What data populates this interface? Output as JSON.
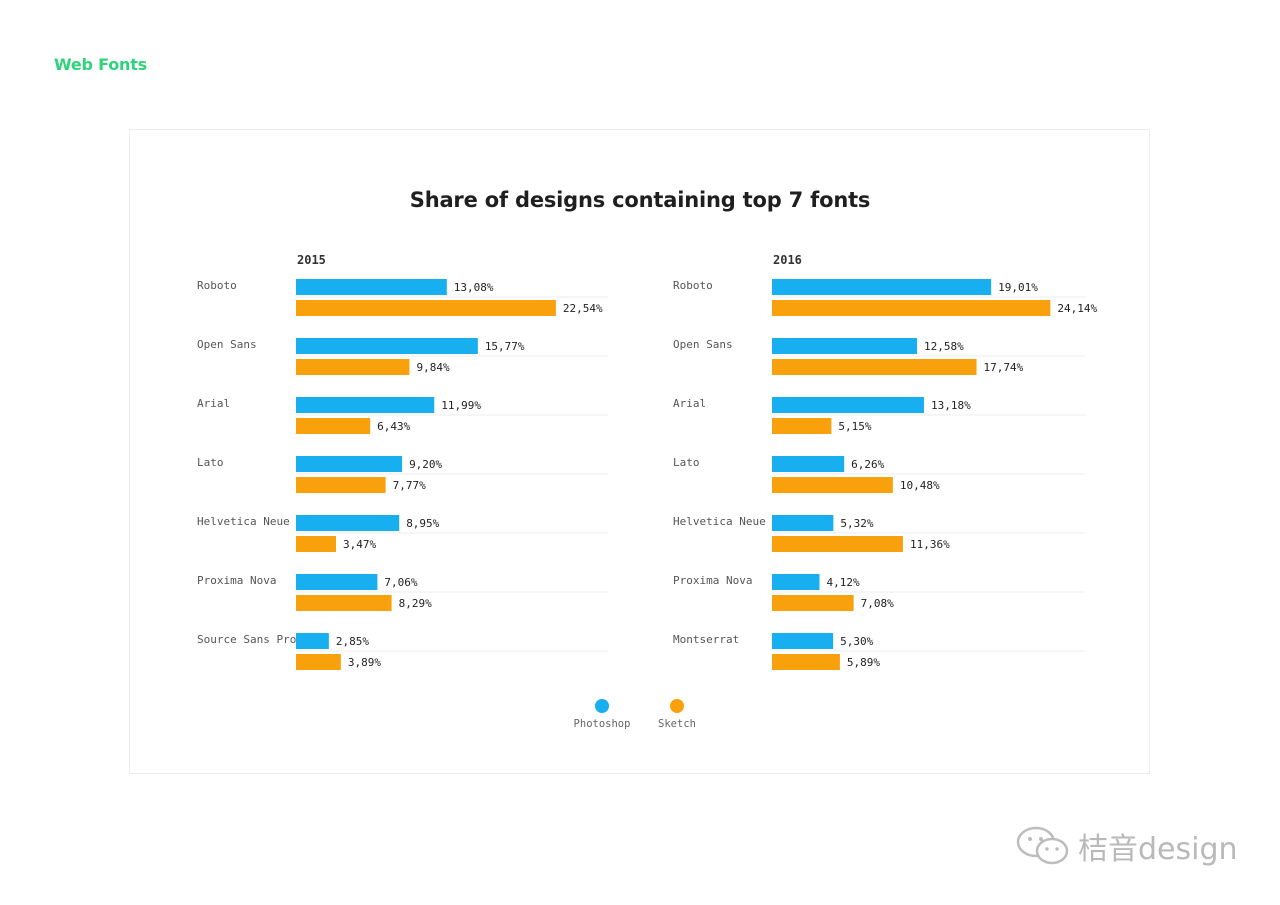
{
  "page": {
    "heading": "Web Fonts",
    "watermark": "桔音design"
  },
  "colors": {
    "photoshop": "#18aff0",
    "sketch": "#f8a10c",
    "heading": "#2ed47a",
    "grid": "#eeeeee"
  },
  "chart_data": {
    "type": "bar",
    "title": "Share of designs containing top 7 fonts",
    "legend": [
      "Photoshop",
      "Sketch"
    ],
    "legend_position": "bottom-center",
    "panels": [
      {
        "year": "2015",
        "categories": [
          "Roboto",
          "Open Sans",
          "Arial",
          "Lato",
          "Helvetica Neue",
          "Proxima Nova",
          "Source Sans Pro"
        ],
        "series": [
          {
            "name": "Photoshop",
            "values": [
              13.08,
              15.77,
              11.99,
              9.2,
              8.95,
              7.06,
              2.85
            ],
            "labels": [
              "13,08%",
              "15,77%",
              "11,99%",
              "9,20%",
              "8,95%",
              "7,06%",
              "2,85%"
            ]
          },
          {
            "name": "Sketch",
            "values": [
              22.54,
              9.84,
              6.43,
              7.77,
              3.47,
              8.29,
              3.89
            ],
            "labels": [
              "22,54%",
              "9,84%",
              "6,43%",
              "7,77%",
              "3,47%",
              "8,29%",
              "3,89%"
            ]
          }
        ]
      },
      {
        "year": "2016",
        "categories": [
          "Roboto",
          "Open Sans",
          "Arial",
          "Lato",
          "Helvetica Neue",
          "Proxima Nova",
          "Montserrat"
        ],
        "series": [
          {
            "name": "Photoshop",
            "values": [
              19.01,
              12.58,
              13.18,
              6.26,
              5.32,
              4.12,
              5.3
            ],
            "labels": [
              "19,01%",
              "12,58%",
              "13,18%",
              "6,26%",
              "5,32%",
              "4,12%",
              "5,30%"
            ]
          },
          {
            "name": "Sketch",
            "values": [
              24.14,
              17.74,
              5.15,
              10.48,
              11.36,
              7.08,
              5.89
            ],
            "labels": [
              "24,14%",
              "17,74%",
              "5,15%",
              "10,48%",
              "11,36%",
              "7,08%",
              "5,89%"
            ]
          }
        ]
      }
    ]
  }
}
